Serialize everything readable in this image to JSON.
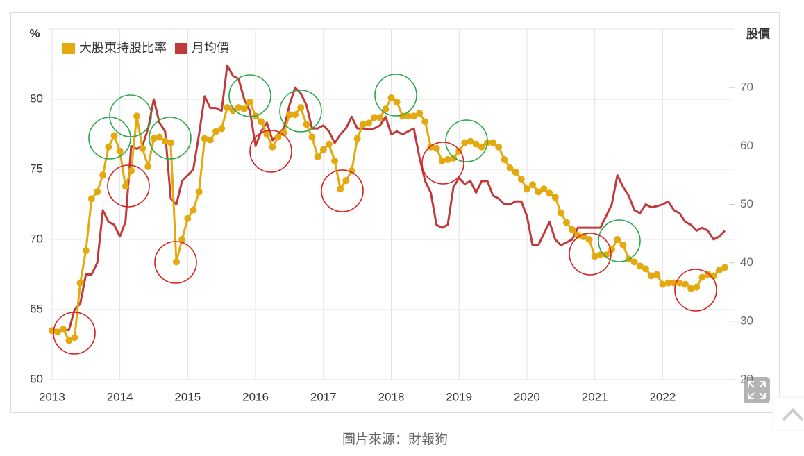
{
  "chart_data": {
    "type": "line",
    "y_label": "%",
    "y2_label": "股價",
    "caption": "圖片來源：財報狗",
    "x": [
      2013,
      2013.083,
      2013.167,
      2013.25,
      2013.333,
      2013.417,
      2013.5,
      2013.583,
      2013.667,
      2013.75,
      2013.833,
      2013.917,
      2014,
      2014.083,
      2014.167,
      2014.25,
      2014.333,
      2014.417,
      2014.5,
      2014.583,
      2014.667,
      2014.75,
      2014.833,
      2014.917,
      2015,
      2015.083,
      2015.167,
      2015.25,
      2015.333,
      2015.417,
      2015.5,
      2015.583,
      2015.667,
      2015.75,
      2015.833,
      2015.917,
      2016,
      2016.083,
      2016.167,
      2016.25,
      2016.333,
      2016.417,
      2016.5,
      2016.583,
      2016.667,
      2016.75,
      2016.833,
      2016.917,
      2017,
      2017.083,
      2017.167,
      2017.25,
      2017.333,
      2017.417,
      2017.5,
      2017.583,
      2017.667,
      2017.75,
      2017.833,
      2017.917,
      2018,
      2018.083,
      2018.167,
      2018.25,
      2018.333,
      2018.417,
      2018.5,
      2018.583,
      2018.667,
      2018.75,
      2018.833,
      2018.917,
      2019,
      2019.083,
      2019.167,
      2019.25,
      2019.333,
      2019.417,
      2019.5,
      2019.583,
      2019.667,
      2019.75,
      2019.833,
      2019.917,
      2020,
      2020.083,
      2020.167,
      2020.25,
      2020.333,
      2020.417,
      2020.5,
      2020.583,
      2020.667,
      2020.75,
      2020.833,
      2020.917,
      2021,
      2021.083,
      2021.167,
      2021.25,
      2021.333,
      2021.417,
      2021.5,
      2021.583,
      2021.667,
      2021.75,
      2021.833,
      2021.917,
      2022,
      2022.083,
      2022.167,
      2022.25,
      2022.333,
      2022.417,
      2022.5,
      2022.583,
      2022.667,
      2022.75,
      2022.833,
      2022.917
    ],
    "series": [
      {
        "name": "大股東持股比率",
        "color": "#e3a90e",
        "markers": true,
        "values": [
          63.5,
          63.4,
          63.6,
          62.8,
          63.0,
          66.9,
          69.2,
          72.9,
          73.4,
          74.6,
          76.6,
          77.4,
          76.3,
          73.8,
          74.9,
          78.8,
          76.5,
          75.2,
          77.2,
          77.3,
          77.0,
          76.9,
          68.4,
          70.0,
          71.5,
          72.1,
          73.4,
          77.2,
          77.1,
          77.7,
          77.9,
          79.4,
          79.2,
          79.4,
          79.3,
          79.8,
          78.8,
          78.4,
          77.5,
          76.6,
          77.3,
          77.6,
          78.9,
          78.9,
          79.4,
          78.2,
          77.3,
          75.9,
          76.4,
          76.8,
          75.6,
          73.6,
          74.2,
          74.9,
          77.2,
          78.2,
          78.3,
          78.7,
          78.7,
          79.3,
          80.1,
          79.8,
          78.8,
          78.8,
          78.8,
          79.0,
          78.4,
          76.6,
          76.5,
          75.6,
          75.7,
          75.8,
          76.3,
          76.9,
          77.0,
          76.8,
          76.6,
          76.9,
          76.9,
          76.6,
          75.7,
          75.1,
          74.8,
          74.3,
          73.6,
          73.9,
          73.4,
          73.6,
          73.3,
          73.0,
          71.9,
          71.2,
          70.7,
          70.3,
          70.2,
          70.0,
          68.8,
          68.9,
          68.9,
          69.3,
          70.0,
          69.6,
          68.6,
          68.4,
          68.1,
          67.9,
          67.4,
          67.5,
          66.8,
          66.9,
          66.9,
          66.9,
          66.8,
          66.5,
          66.6,
          67.3,
          67.5,
          67.4,
          67.8,
          68.0
        ]
      },
      {
        "name": "月均價",
        "color": "#c0393b",
        "axis": "y2",
        "values": [
          28.5,
          28.5,
          28.5,
          28.5,
          32,
          33,
          38,
          38,
          40,
          49,
          47,
          46.5,
          44.5,
          47,
          60,
          59.5,
          60,
          63,
          68,
          64,
          62.5,
          51,
          50,
          54,
          55,
          56,
          62,
          68.5,
          66.5,
          66.5,
          66,
          73.8,
          72,
          71.5,
          68,
          66,
          60,
          62.5,
          64,
          61,
          62,
          63,
          67,
          70,
          69,
          67,
          63,
          63,
          63.5,
          62.5,
          60.5,
          62,
          63,
          65,
          63,
          63,
          62.8,
          63,
          63.5,
          65,
          62,
          62.5,
          62,
          62.5,
          63,
          58,
          54,
          52,
          46.5,
          46,
          46.5,
          53,
          54.5,
          53.5,
          54,
          52,
          54,
          54,
          51.5,
          51,
          50,
          50,
          50.5,
          50.5,
          48,
          43,
          43,
          45,
          47,
          44,
          43,
          43.5,
          44,
          46,
          46,
          46,
          46,
          46,
          48,
          50,
          55,
          53,
          51.5,
          49,
          48.5,
          50,
          49.5,
          49.7,
          50,
          50.5,
          49,
          48.5,
          47,
          46.5,
          45.5,
          46,
          45.5,
          44,
          44.5,
          45.5
        ]
      }
    ],
    "xlim": [
      2012.95,
      2023.05
    ],
    "xticks": [
      2013,
      2014,
      2015,
      2016,
      2017,
      2018,
      2019,
      2020,
      2021,
      2022
    ],
    "ylim": [
      60,
      85
    ],
    "yticks": [
      60,
      65,
      70,
      75,
      80
    ],
    "y2lim": [
      20,
      80
    ],
    "y2ticks": [
      20,
      30,
      40,
      50,
      60,
      70
    ],
    "grid": true,
    "legend": "upper left"
  }
}
